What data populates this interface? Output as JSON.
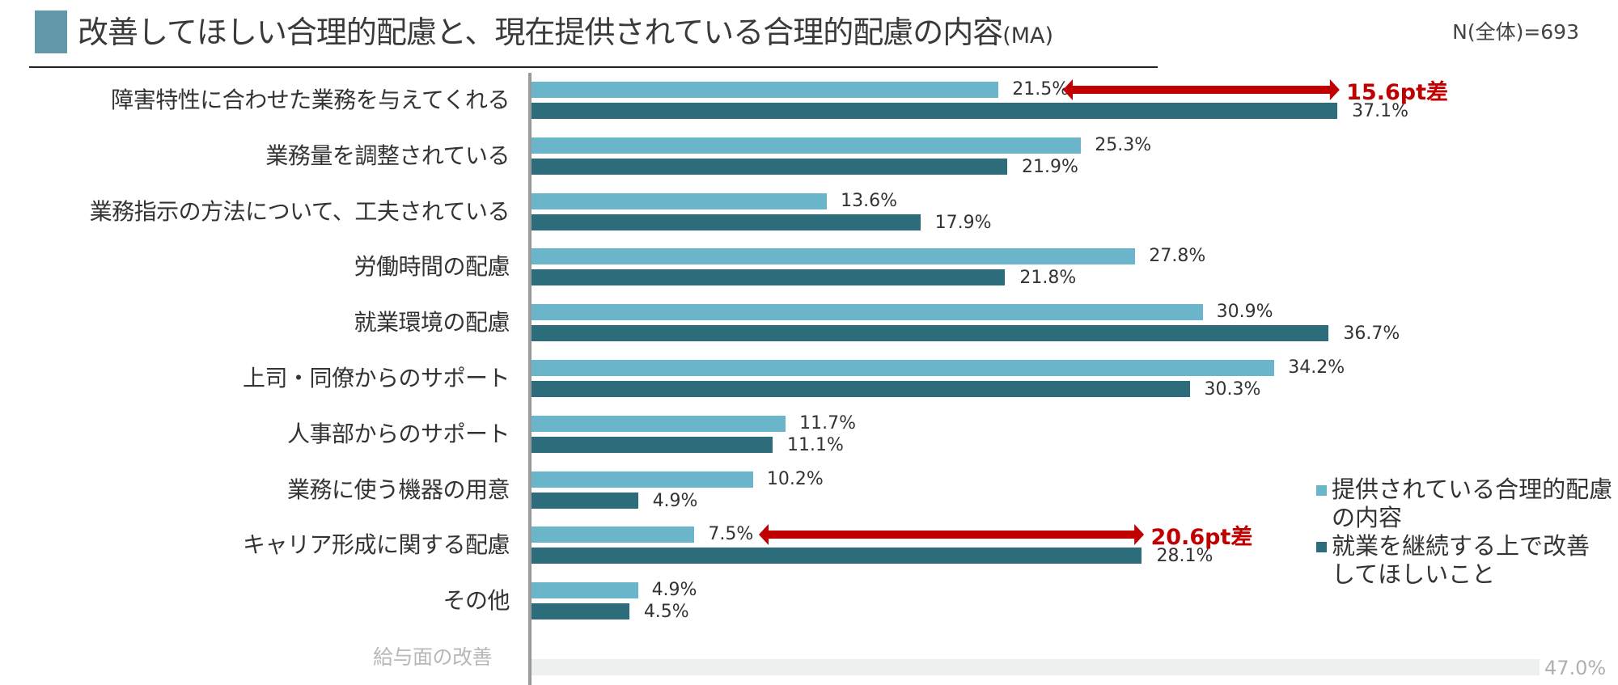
{
  "header": {
    "title": "改善してほしい合理的配慮と、現在提供されている合理的配慮の内容",
    "title_suffix": "(MA)",
    "sample_size": "N(全体)=693"
  },
  "colors": {
    "title_block": "#6199ab",
    "series_provided": "#6ab5ca",
    "series_improve": "#2c6c7b",
    "highlight": "#c00000",
    "faded_bar": "#eef0f0"
  },
  "legend": {
    "items": [
      {
        "label": "提供されている合理的配慮の内容",
        "color": "#6ab5ca"
      },
      {
        "label": "就業を継続する上で改善してほしいこと",
        "color": "#2c6c7b"
      }
    ]
  },
  "annotations": [
    {
      "label": "15.6pt差",
      "category": "障害特性に合わせた業務を与えてくれる"
    },
    {
      "label": "20.6pt差",
      "category": "キャリア形成に関する配慮"
    }
  ],
  "rows": [
    {
      "label": "障害特性に合わせた業務を与えてくれる",
      "provided": "21.5%",
      "improve": "37.1%"
    },
    {
      "label": "業務量を調整されている",
      "provided": "25.3%",
      "improve": "21.9%"
    },
    {
      "label": "業務指示の方法について、工夫されている",
      "provided": "13.6%",
      "improve": "17.9%"
    },
    {
      "label": "労働時間の配慮",
      "provided": "27.8%",
      "improve": "21.8%"
    },
    {
      "label": "就業環境の配慮",
      "provided": "30.9%",
      "improve": "36.7%"
    },
    {
      "label": "上司・同僚からのサポート",
      "provided": "34.2%",
      "improve": "30.3%"
    },
    {
      "label": "人事部からのサポート",
      "provided": "11.7%",
      "improve": "11.1%"
    },
    {
      "label": "業務に使う機器の用意",
      "provided": "10.2%",
      "improve": "4.9%"
    },
    {
      "label": "キャリア形成に関する配慮",
      "provided": "7.5%",
      "improve": "28.1%"
    },
    {
      "label": "その他",
      "provided": "4.9%",
      "improve": "4.5%"
    }
  ],
  "faded_row": {
    "label": "給与面の改善",
    "value": "47.0%"
  },
  "chart_data": {
    "type": "bar",
    "orientation": "horizontal",
    "title": "改善してほしい合理的配慮と、現在提供されている合理的配慮の内容(MA)",
    "subtitle": "N(全体)=693",
    "categories": [
      "障害特性に合わせた業務を与えてくれる",
      "業務量を調整されている",
      "業務指示の方法について、工夫されている",
      "労働時間の配慮",
      "就業環境の配慮",
      "上司・同僚からのサポート",
      "人事部からのサポート",
      "業務に使う機器の用意",
      "キャリア形成に関する配慮",
      "その他"
    ],
    "series": [
      {
        "name": "提供されている合理的配慮の内容",
        "values": [
          21.5,
          25.3,
          13.6,
          27.8,
          30.9,
          34.2,
          11.7,
          10.2,
          7.5,
          4.9
        ]
      },
      {
        "name": "就業を継続する上で改善してほしいこと",
        "values": [
          37.1,
          21.9,
          17.9,
          21.8,
          36.7,
          30.3,
          11.1,
          4.9,
          28.1,
          4.5
        ]
      }
    ],
    "faded_category": {
      "name": "給与面の改善",
      "value": 47.0
    },
    "annotations": [
      {
        "category": "障害特性に合わせた業務を与えてくれる",
        "text": "15.6pt差"
      },
      {
        "category": "キャリア形成に関する配慮",
        "text": "20.6pt差"
      }
    ],
    "xlabel": "",
    "ylabel": "",
    "unit": "%",
    "xlim": [
      0,
      50
    ],
    "grid": false,
    "legend_position": "right-bottom"
  }
}
